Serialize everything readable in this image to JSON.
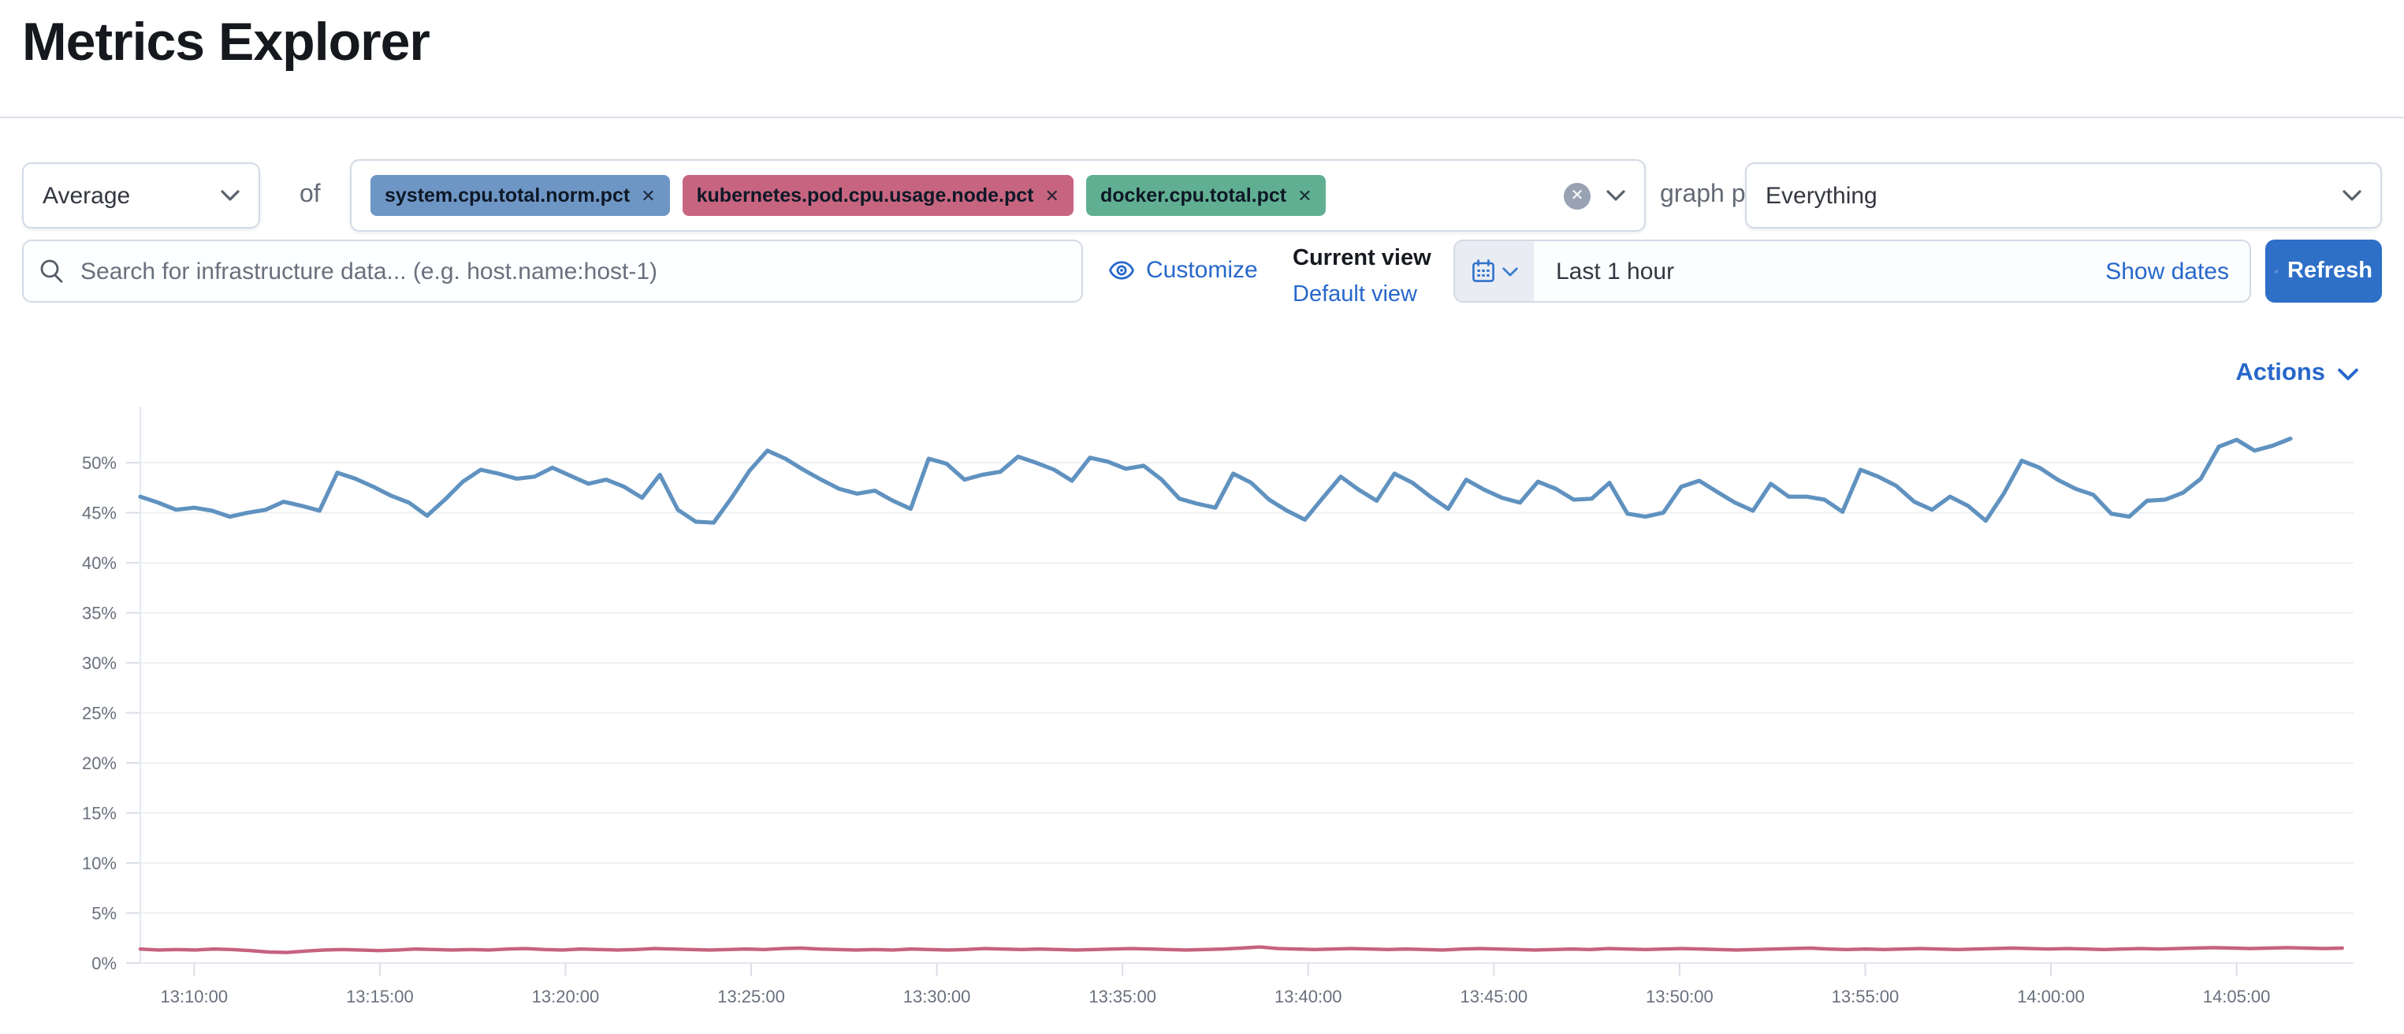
{
  "page": {
    "title": "Metrics Explorer"
  },
  "toolbar": {
    "aggregation_value": "Average",
    "of_label": "of",
    "metrics": [
      {
        "label": "system.cpu.total.norm.pct",
        "color": "#6E96C5"
      },
      {
        "label": "kubernetes.pod.cpu.usage.node.pct",
        "color": "#C76580"
      },
      {
        "label": "docker.cpu.total.pct",
        "color": "#61AF92"
      }
    ],
    "graph_per_label": "graph per",
    "group_by_value": "Everything"
  },
  "search": {
    "placeholder": "Search for infrastructure data... (e.g. host.name:host-1)"
  },
  "view_controls": {
    "customize_label": "Customize",
    "current_view_label": "Current view",
    "default_view_label": "Default view"
  },
  "time_controls": {
    "range_label": "Last 1 hour",
    "show_dates_label": "Show dates",
    "refresh_label": "Refresh"
  },
  "actions_label": "Actions",
  "colors": {
    "link_blue": "#2767cb",
    "button_blue": "#2e6fc7",
    "axis_text": "#69707d",
    "gridline": "#eef1f5",
    "tick": "#d9dee6",
    "axis_line": "#e3e7ee"
  },
  "chart_data": {
    "type": "line",
    "title": "",
    "xlabel": "",
    "ylabel": "",
    "ylim": [
      0,
      55.6
    ],
    "grid": true,
    "legend": "none",
    "y_tick_labels": [
      "0%",
      "5%",
      "10%",
      "15%",
      "20%",
      "25%",
      "30%",
      "35%",
      "40%",
      "45%",
      "50%"
    ],
    "x_tick_labels": [
      "13:10:00",
      "13:15:00",
      "13:20:00",
      "13:25:00",
      "13:30:00",
      "13:35:00",
      "13:40:00",
      "13:45:00",
      "13:50:00",
      "13:55:00",
      "14:00:00",
      "14:05:00"
    ],
    "x_axis": {
      "first_tick_minute": 1.45,
      "tick_interval_minutes": 5,
      "total_minutes": 59.6,
      "start_time": "13:08:30",
      "unit": "time"
    },
    "series": [
      {
        "name": "system.cpu.total.norm.pct",
        "color": "#6092C0",
        "width": 2.6,
        "x_span_minutes": [
          0,
          57.9
        ],
        "unit": "%",
        "values": [
          46.6,
          46.0,
          45.3,
          45.5,
          45.2,
          44.6,
          45.0,
          45.3,
          46.1,
          45.7,
          45.2,
          49.0,
          48.4,
          47.6,
          46.7,
          46.0,
          44.7,
          46.3,
          48.1,
          49.3,
          48.9,
          48.4,
          48.6,
          49.5,
          48.7,
          47.9,
          48.3,
          47.6,
          46.5,
          48.8,
          45.3,
          44.1,
          44.0,
          46.5,
          49.2,
          51.2,
          50.4,
          49.3,
          48.3,
          47.4,
          46.9,
          47.2,
          46.2,
          45.4,
          50.4,
          49.9,
          48.3,
          48.8,
          49.1,
          50.6,
          50.0,
          49.3,
          48.2,
          50.5,
          50.1,
          49.4,
          49.7,
          48.3,
          46.4,
          45.9,
          45.5,
          48.9,
          48.0,
          46.3,
          45.2,
          44.3,
          46.5,
          48.6,
          47.3,
          46.2,
          48.9,
          48.0,
          46.6,
          45.4,
          48.3,
          47.3,
          46.5,
          46.0,
          48.1,
          47.4,
          46.3,
          46.4,
          48.0,
          44.9,
          44.6,
          45.0,
          47.6,
          48.2,
          47.1,
          46.0,
          45.2,
          47.9,
          46.6,
          46.6,
          46.3,
          45.1,
          49.3,
          48.6,
          47.7,
          46.1,
          45.3,
          46.6,
          45.7,
          44.2,
          46.9,
          50.2,
          49.5,
          48.3,
          47.4,
          46.8,
          44.9,
          44.6,
          46.2,
          46.3,
          47.0,
          48.4,
          51.6,
          52.3,
          51.2,
          51.7,
          52.4
        ]
      },
      {
        "name": "kubernetes.pod.cpu.usage.node.pct",
        "color": "#C6627F",
        "width": 2.2,
        "x_span_minutes": [
          0,
          59.3
        ],
        "unit": "%",
        "values": [
          1.4,
          1.3,
          1.35,
          1.3,
          1.4,
          1.35,
          1.25,
          1.1,
          1.05,
          1.2,
          1.3,
          1.35,
          1.3,
          1.25,
          1.3,
          1.4,
          1.35,
          1.3,
          1.35,
          1.3,
          1.4,
          1.45,
          1.35,
          1.3,
          1.4,
          1.35,
          1.3,
          1.35,
          1.45,
          1.4,
          1.35,
          1.3,
          1.35,
          1.4,
          1.35,
          1.45,
          1.5,
          1.4,
          1.35,
          1.3,
          1.35,
          1.3,
          1.4,
          1.35,
          1.3,
          1.35,
          1.45,
          1.4,
          1.35,
          1.4,
          1.35,
          1.3,
          1.35,
          1.4,
          1.45,
          1.4,
          1.35,
          1.3,
          1.35,
          1.4,
          1.5,
          1.6,
          1.45,
          1.4,
          1.35,
          1.4,
          1.45,
          1.4,
          1.35,
          1.4,
          1.35,
          1.3,
          1.4,
          1.45,
          1.4,
          1.35,
          1.3,
          1.35,
          1.4,
          1.35,
          1.45,
          1.4,
          1.35,
          1.4,
          1.45,
          1.4,
          1.35,
          1.3,
          1.35,
          1.4,
          1.45,
          1.5,
          1.4,
          1.35,
          1.4,
          1.35,
          1.4,
          1.45,
          1.4,
          1.35,
          1.4,
          1.45,
          1.5,
          1.45,
          1.4,
          1.45,
          1.4,
          1.35,
          1.4,
          1.45,
          1.4,
          1.45,
          1.5,
          1.55,
          1.5,
          1.45,
          1.5,
          1.55,
          1.5,
          1.45,
          1.5
        ]
      }
    ]
  }
}
